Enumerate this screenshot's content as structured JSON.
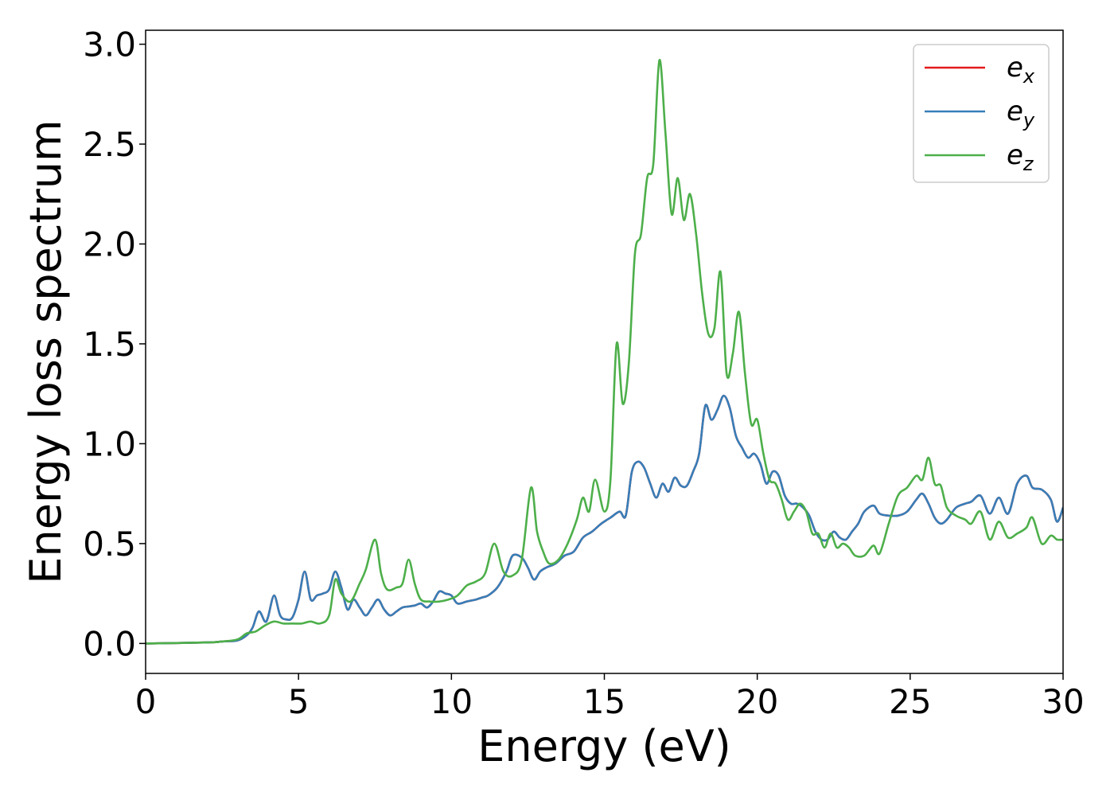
{
  "chart_data": {
    "type": "line",
    "xlabel": "Energy (eV)",
    "ylabel": "Energy loss spectrum",
    "xlim": [
      0,
      30
    ],
    "ylim": [
      -0.15,
      3.07
    ],
    "xticks": [
      0,
      5,
      10,
      15,
      20,
      25,
      30
    ],
    "xtick_labels": [
      "0",
      "5",
      "10",
      "15",
      "20",
      "25",
      "30"
    ],
    "yticks": [
      0.0,
      0.5,
      1.0,
      1.5,
      2.0,
      2.5,
      3.0
    ],
    "ytick_labels": [
      "0.0",
      "0.5",
      "1.0",
      "1.5",
      "2.0",
      "2.5",
      "3.0"
    ],
    "grid": false,
    "legend_position": "top-right",
    "series": [
      {
        "name": "e_x",
        "legend_main": "e",
        "legend_sub": "x",
        "color": "#e41a1c",
        "x": [
          0,
          2,
          2.5,
          3,
          3.3,
          3.5,
          3.7,
          3.9,
          4.0,
          4.2,
          4.4,
          4.6,
          4.8,
          5.0,
          5.2,
          5.4,
          5.6,
          5.8,
          6.0,
          6.2,
          6.4,
          6.6,
          6.8,
          7.0,
          7.2,
          7.4,
          7.6,
          7.8,
          8.0,
          8.2,
          8.4,
          8.6,
          8.8,
          9.0,
          9.2,
          9.4,
          9.6,
          9.8,
          10.0,
          10.2,
          10.5,
          10.8,
          11.0,
          11.2,
          11.5,
          11.8,
          12.0,
          12.3,
          12.5,
          12.7,
          12.9,
          13.1,
          13.4,
          13.7,
          14.0,
          14.3,
          14.6,
          14.9,
          15.2,
          15.5,
          15.7,
          15.9,
          16.1,
          16.3,
          16.5,
          16.7,
          16.9,
          17.1,
          17.3,
          17.5,
          17.7,
          17.9,
          18.1,
          18.3,
          18.5,
          18.7,
          18.9,
          19.1,
          19.3,
          19.5,
          19.7,
          19.9,
          20.1,
          20.3,
          20.5,
          20.7,
          20.9,
          21.1,
          21.3,
          21.5,
          21.7,
          21.9,
          22.1,
          22.3,
          22.5,
          22.7,
          22.9,
          23.1,
          23.3,
          23.5,
          23.8,
          24.0,
          24.3,
          24.6,
          24.9,
          25.2,
          25.4,
          25.6,
          25.8,
          26.0,
          26.2,
          26.5,
          26.8,
          27.0,
          27.3,
          27.6,
          27.9,
          28.2,
          28.5,
          28.8,
          29.0,
          29.3,
          29.6,
          29.8,
          30.0
        ],
        "y": [
          0,
          0.005,
          0.01,
          0.015,
          0.04,
          0.08,
          0.16,
          0.11,
          0.13,
          0.24,
          0.14,
          0.12,
          0.13,
          0.22,
          0.36,
          0.22,
          0.24,
          0.25,
          0.27,
          0.36,
          0.28,
          0.17,
          0.22,
          0.18,
          0.14,
          0.18,
          0.22,
          0.17,
          0.14,
          0.16,
          0.18,
          0.185,
          0.19,
          0.2,
          0.18,
          0.21,
          0.26,
          0.25,
          0.24,
          0.2,
          0.21,
          0.22,
          0.23,
          0.24,
          0.28,
          0.36,
          0.44,
          0.43,
          0.38,
          0.32,
          0.36,
          0.38,
          0.4,
          0.44,
          0.46,
          0.53,
          0.56,
          0.6,
          0.63,
          0.66,
          0.64,
          0.86,
          0.91,
          0.88,
          0.8,
          0.73,
          0.8,
          0.76,
          0.83,
          0.79,
          0.79,
          0.86,
          0.95,
          1.19,
          1.12,
          1.17,
          1.24,
          1.18,
          1.04,
          0.98,
          0.93,
          0.95,
          0.9,
          0.8,
          0.86,
          0.84,
          0.74,
          0.7,
          0.7,
          0.68,
          0.64,
          0.56,
          0.52,
          0.52,
          0.56,
          0.53,
          0.52,
          0.56,
          0.6,
          0.66,
          0.69,
          0.65,
          0.64,
          0.64,
          0.66,
          0.72,
          0.75,
          0.7,
          0.63,
          0.6,
          0.62,
          0.68,
          0.7,
          0.71,
          0.74,
          0.65,
          0.73,
          0.65,
          0.8,
          0.84,
          0.78,
          0.77,
          0.72,
          0.61,
          0.68
        ]
      },
      {
        "name": "e_y",
        "legend_main": "e",
        "legend_sub": "y",
        "color": "#377eb8",
        "x": [
          0,
          2,
          2.5,
          3,
          3.3,
          3.5,
          3.7,
          3.9,
          4.0,
          4.2,
          4.4,
          4.6,
          4.8,
          5.0,
          5.2,
          5.4,
          5.6,
          5.8,
          6.0,
          6.2,
          6.4,
          6.6,
          6.8,
          7.0,
          7.2,
          7.4,
          7.6,
          7.8,
          8.0,
          8.2,
          8.4,
          8.6,
          8.8,
          9.0,
          9.2,
          9.4,
          9.6,
          9.8,
          10.0,
          10.2,
          10.5,
          10.8,
          11.0,
          11.2,
          11.5,
          11.8,
          12.0,
          12.3,
          12.5,
          12.7,
          12.9,
          13.1,
          13.4,
          13.7,
          14.0,
          14.3,
          14.6,
          14.9,
          15.2,
          15.5,
          15.7,
          15.9,
          16.1,
          16.3,
          16.5,
          16.7,
          16.9,
          17.1,
          17.3,
          17.5,
          17.7,
          17.9,
          18.1,
          18.3,
          18.5,
          18.7,
          18.9,
          19.1,
          19.3,
          19.5,
          19.7,
          19.9,
          20.1,
          20.3,
          20.5,
          20.7,
          20.9,
          21.1,
          21.3,
          21.5,
          21.7,
          21.9,
          22.1,
          22.3,
          22.5,
          22.7,
          22.9,
          23.1,
          23.3,
          23.5,
          23.8,
          24.0,
          24.3,
          24.6,
          24.9,
          25.2,
          25.4,
          25.6,
          25.8,
          26.0,
          26.2,
          26.5,
          26.8,
          27.0,
          27.3,
          27.6,
          27.9,
          28.2,
          28.5,
          28.8,
          29.0,
          29.3,
          29.6,
          29.8,
          30.0
        ],
        "y": [
          0,
          0.005,
          0.01,
          0.015,
          0.04,
          0.08,
          0.16,
          0.11,
          0.13,
          0.24,
          0.14,
          0.12,
          0.13,
          0.22,
          0.36,
          0.22,
          0.24,
          0.25,
          0.27,
          0.36,
          0.28,
          0.17,
          0.22,
          0.18,
          0.14,
          0.18,
          0.22,
          0.17,
          0.14,
          0.16,
          0.18,
          0.185,
          0.19,
          0.2,
          0.18,
          0.21,
          0.26,
          0.25,
          0.24,
          0.2,
          0.21,
          0.22,
          0.23,
          0.24,
          0.28,
          0.36,
          0.44,
          0.43,
          0.38,
          0.32,
          0.36,
          0.38,
          0.4,
          0.44,
          0.46,
          0.53,
          0.56,
          0.6,
          0.63,
          0.66,
          0.64,
          0.86,
          0.91,
          0.88,
          0.8,
          0.73,
          0.8,
          0.76,
          0.83,
          0.79,
          0.79,
          0.86,
          0.95,
          1.19,
          1.12,
          1.17,
          1.24,
          1.18,
          1.04,
          0.98,
          0.93,
          0.95,
          0.9,
          0.8,
          0.86,
          0.84,
          0.74,
          0.7,
          0.7,
          0.68,
          0.64,
          0.56,
          0.52,
          0.52,
          0.56,
          0.53,
          0.52,
          0.56,
          0.6,
          0.66,
          0.69,
          0.65,
          0.64,
          0.64,
          0.66,
          0.72,
          0.75,
          0.7,
          0.63,
          0.6,
          0.62,
          0.68,
          0.7,
          0.71,
          0.74,
          0.65,
          0.73,
          0.65,
          0.8,
          0.84,
          0.78,
          0.77,
          0.72,
          0.61,
          0.68
        ]
      },
      {
        "name": "e_z",
        "legend_main": "e",
        "legend_sub": "z",
        "color": "#4daf4a",
        "x": [
          0,
          2,
          2.5,
          3,
          3.3,
          3.6,
          3.9,
          4.2,
          4.5,
          4.8,
          5.1,
          5.4,
          5.7,
          6.0,
          6.2,
          6.4,
          6.7,
          7.0,
          7.2,
          7.5,
          7.7,
          7.9,
          8.2,
          8.4,
          8.6,
          8.8,
          9.0,
          9.3,
          9.6,
          9.9,
          10.2,
          10.5,
          10.8,
          11.1,
          11.4,
          11.7,
          12.0,
          12.3,
          12.6,
          12.8,
          13.0,
          13.2,
          13.5,
          13.8,
          14.1,
          14.3,
          14.5,
          14.7,
          15.0,
          15.2,
          15.4,
          15.6,
          15.8,
          16.0,
          16.2,
          16.4,
          16.6,
          16.8,
          17.0,
          17.2,
          17.4,
          17.6,
          17.8,
          18.0,
          18.2,
          18.4,
          18.6,
          18.8,
          19.0,
          19.2,
          19.4,
          19.6,
          19.8,
          20.0,
          20.2,
          20.4,
          20.6,
          20.8,
          21.0,
          21.2,
          21.4,
          21.6,
          21.8,
          22.0,
          22.2,
          22.4,
          22.6,
          22.8,
          23.0,
          23.2,
          23.5,
          23.8,
          24.0,
          24.3,
          24.6,
          24.9,
          25.2,
          25.4,
          25.6,
          25.8,
          26.0,
          26.2,
          26.5,
          26.8,
          27.0,
          27.3,
          27.6,
          27.9,
          28.2,
          28.5,
          28.8,
          29.0,
          29.3,
          29.6,
          29.8,
          30.0
        ],
        "y": [
          0,
          0.005,
          0.01,
          0.02,
          0.05,
          0.06,
          0.09,
          0.11,
          0.1,
          0.1,
          0.1,
          0.11,
          0.1,
          0.14,
          0.32,
          0.25,
          0.21,
          0.3,
          0.37,
          0.52,
          0.35,
          0.27,
          0.28,
          0.3,
          0.42,
          0.3,
          0.22,
          0.21,
          0.21,
          0.22,
          0.24,
          0.29,
          0.31,
          0.35,
          0.5,
          0.36,
          0.34,
          0.42,
          0.78,
          0.56,
          0.46,
          0.4,
          0.42,
          0.5,
          0.62,
          0.73,
          0.66,
          0.82,
          0.66,
          0.82,
          1.5,
          1.2,
          1.4,
          1.95,
          2.05,
          2.33,
          2.4,
          2.92,
          2.55,
          2.15,
          2.33,
          2.12,
          2.25,
          2.05,
          1.75,
          1.55,
          1.58,
          1.86,
          1.35,
          1.45,
          1.66,
          1.35,
          1.1,
          1.12,
          0.95,
          0.82,
          0.8,
          0.72,
          0.62,
          0.66,
          0.7,
          0.66,
          0.55,
          0.55,
          0.48,
          0.55,
          0.48,
          0.5,
          0.48,
          0.44,
          0.44,
          0.49,
          0.45,
          0.6,
          0.74,
          0.78,
          0.84,
          0.82,
          0.93,
          0.8,
          0.79,
          0.68,
          0.64,
          0.62,
          0.6,
          0.66,
          0.52,
          0.61,
          0.53,
          0.55,
          0.58,
          0.63,
          0.5,
          0.54,
          0.52,
          0.52
        ]
      }
    ]
  }
}
